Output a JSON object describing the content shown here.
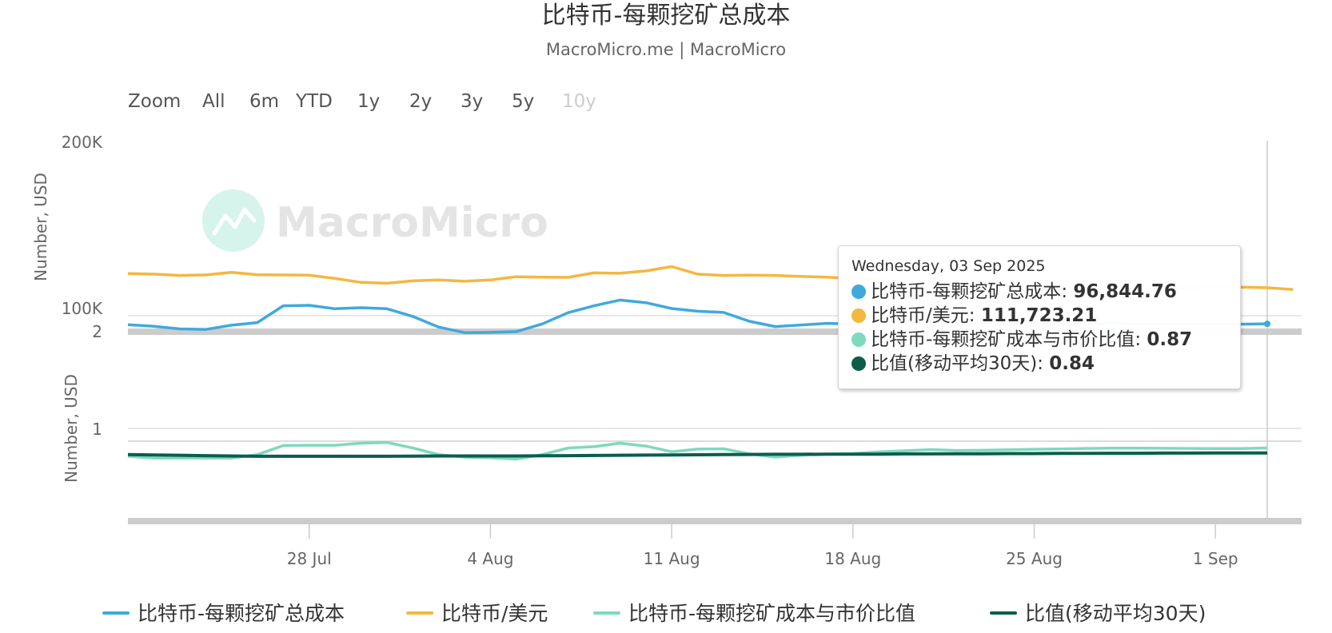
{
  "header": {
    "title": "比特币-每颗挖矿总成本",
    "subtitle": "MacroMicro.me | MacroMicro"
  },
  "range_selector": {
    "zoom_label": "Zoom",
    "buttons": [
      "All",
      "6m",
      "YTD",
      "1y",
      "2y",
      "3y",
      "5y",
      "10y"
    ],
    "disabled": [
      "10y"
    ]
  },
  "watermark": {
    "text": "MacroMicro"
  },
  "tooltip": {
    "date": "Wednesday, 03 Sep 2025",
    "rows": [
      {
        "label": "比特币-每颗挖矿总成本",
        "value": "96,844.76"
      },
      {
        "label": "比特币/美元",
        "value": "111,723.21"
      },
      {
        "label": "比特币-每颗挖矿成本与市价比值",
        "value": "0.87"
      },
      {
        "label": "比值(移动平均30天)",
        "value": "0.84"
      }
    ]
  },
  "colors": {
    "cost": "#3fa9dc",
    "price": "#f4b740",
    "ratio": "#7fd9bf",
    "ratio_ma": "#0b5e4a",
    "grid": "#e0e0e0",
    "separator": "#cccccc"
  },
  "chart_data": [
    {
      "type": "line",
      "x": [
        "2025-07-21",
        "2025-07-22",
        "2025-07-23",
        "2025-07-24",
        "2025-07-25",
        "2025-07-26",
        "2025-07-27",
        "2025-07-28",
        "2025-07-29",
        "2025-07-30",
        "2025-07-31",
        "2025-08-01",
        "2025-08-02",
        "2025-08-03",
        "2025-08-04",
        "2025-08-05",
        "2025-08-06",
        "2025-08-07",
        "2025-08-08",
        "2025-08-09",
        "2025-08-10",
        "2025-08-11",
        "2025-08-12",
        "2025-08-13",
        "2025-08-14",
        "2025-08-15",
        "2025-08-16",
        "2025-08-17",
        "2025-08-18",
        "2025-08-19",
        "2025-08-20",
        "2025-08-21",
        "2025-08-22",
        "2025-08-23",
        "2025-08-24",
        "2025-08-25",
        "2025-08-26",
        "2025-08-27",
        "2025-08-28",
        "2025-08-29",
        "2025-08-30",
        "2025-08-31",
        "2025-09-01",
        "2025-09-02",
        "2025-09-03",
        "2025-09-04"
      ],
      "ylabel": "Number, USD",
      "ylim": [
        80000,
        200000
      ],
      "yticks": [
        "200K",
        "100K"
      ],
      "series": [
        {
          "name": "比特币-每颗挖矿总成本",
          "values": [
            96500,
            95900,
            94900,
            94700,
            96300,
            97300,
            104000,
            104200,
            102800,
            103200,
            102800,
            99700,
            95600,
            93500,
            93600,
            93900,
            96800,
            101200,
            104000,
            106400,
            105300,
            102900,
            101800,
            101300,
            97800,
            95800,
            96400,
            97000,
            96800,
            97500,
            98000,
            97600,
            97200,
            97000,
            96900,
            96800,
            96700,
            96900,
            97000,
            96800,
            96700,
            96800,
            96800,
            96700,
            96844.76,
            null
          ]
        },
        {
          "name": "比特币/美元",
          "values": [
            118200,
            117900,
            117300,
            117500,
            118700,
            117600,
            117500,
            117400,
            115900,
            114100,
            113700,
            114800,
            115200,
            114600,
            115200,
            116700,
            116500,
            116400,
            118500,
            118300,
            119400,
            121500,
            117900,
            117300,
            117400,
            117300,
            116800,
            116500,
            115800,
            115300,
            114800,
            114300,
            113800,
            113300,
            112800,
            112300,
            112000,
            111800,
            111700,
            111600,
            111500,
            111600,
            111700,
            112000,
            111723.21,
            110900
          ]
        }
      ]
    },
    {
      "type": "line",
      "x": [
        "2025-07-21",
        "2025-07-22",
        "2025-07-23",
        "2025-07-24",
        "2025-07-25",
        "2025-07-26",
        "2025-07-27",
        "2025-07-28",
        "2025-07-29",
        "2025-07-30",
        "2025-07-31",
        "2025-08-01",
        "2025-08-02",
        "2025-08-03",
        "2025-08-04",
        "2025-08-05",
        "2025-08-06",
        "2025-08-07",
        "2025-08-08",
        "2025-08-09",
        "2025-08-10",
        "2025-08-11",
        "2025-08-12",
        "2025-08-13",
        "2025-08-14",
        "2025-08-15",
        "2025-08-16",
        "2025-08-17",
        "2025-08-18",
        "2025-08-19",
        "2025-08-20",
        "2025-08-21",
        "2025-08-22",
        "2025-08-23",
        "2025-08-24",
        "2025-08-25",
        "2025-08-26",
        "2025-08-27",
        "2025-08-28",
        "2025-08-29",
        "2025-08-30",
        "2025-08-31",
        "2025-09-01",
        "2025-09-02",
        "2025-09-03"
      ],
      "ylabel": "Number, USD",
      "ylim": [
        0.5,
        2
      ],
      "yticks": [
        "2",
        "1"
      ],
      "series": [
        {
          "name": "比特币-每颗挖矿成本与市价比值",
          "values": [
            0.82,
            0.81,
            0.81,
            0.81,
            0.81,
            0.83,
            0.885,
            0.887,
            0.887,
            0.9,
            0.905,
            0.87,
            0.83,
            0.815,
            0.812,
            0.804,
            0.83,
            0.87,
            0.878,
            0.9,
            0.882,
            0.847,
            0.863,
            0.865,
            0.834,
            0.815,
            0.826,
            0.832,
            0.836,
            0.846,
            0.853,
            0.86,
            0.855,
            0.856,
            0.859,
            0.862,
            0.864,
            0.867,
            0.869,
            0.869,
            0.868,
            0.867,
            0.866,
            0.866,
            0.87
          ]
        },
        {
          "name": "比值(移动平均30天)",
          "values": [
            0.83,
            0.828,
            0.826,
            0.824,
            0.822,
            0.82,
            0.82,
            0.82,
            0.82,
            0.82,
            0.82,
            0.821,
            0.822,
            0.822,
            0.822,
            0.822,
            0.823,
            0.824,
            0.825,
            0.826,
            0.827,
            0.828,
            0.829,
            0.83,
            0.831,
            0.832,
            0.832,
            0.833,
            0.833,
            0.833,
            0.834,
            0.834,
            0.835,
            0.835,
            0.836,
            0.836,
            0.837,
            0.837,
            0.838,
            0.838,
            0.839,
            0.839,
            0.84,
            0.84,
            0.84
          ]
        }
      ]
    }
  ],
  "x_axis": {
    "ticks": [
      "28 Jul",
      "4 Aug",
      "11 Aug",
      "18 Aug",
      "25 Aug",
      "1 Sep"
    ]
  },
  "legend": [
    {
      "label": "比特币-每颗挖矿总成本",
      "color_key": "cost"
    },
    {
      "label": "比特币/美元",
      "color_key": "price"
    },
    {
      "label": "比特币-每颗挖矿成本与市价比值",
      "color_key": "ratio"
    },
    {
      "label": "比值(移动平均30天)",
      "color_key": "ratio_ma"
    }
  ]
}
